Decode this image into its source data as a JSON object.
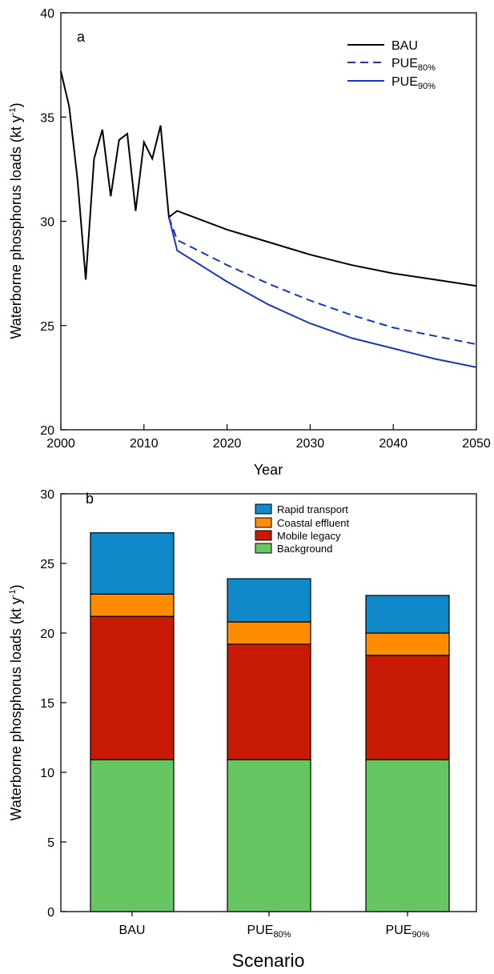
{
  "chart_data": [
    {
      "type": "line",
      "panel_label": "a",
      "xlabel": "Year",
      "ylabel": "Waterborne phosphorus loads (kt y",
      "ylabel_sup": "-1",
      "ylabel_end": ")",
      "xlim": [
        2000,
        2050
      ],
      "ylim": [
        20,
        40
      ],
      "xticks": [
        2000,
        2010,
        2020,
        2030,
        2040,
        2050
      ],
      "yticks": [
        20,
        25,
        30,
        35,
        40
      ],
      "grid": false,
      "legend_position": "top-right",
      "series": [
        {
          "name": "BAU",
          "name_base": "BAU",
          "name_sub": "",
          "color": "#000000",
          "dash": "solid",
          "x": [
            2000,
            2001,
            2002,
            2003,
            2004,
            2005,
            2006,
            2007,
            2008,
            2009,
            2010,
            2011,
            2012,
            2013,
            2014,
            2020,
            2025,
            2030,
            2035,
            2040,
            2045,
            2050
          ],
          "y": [
            37.2,
            35.5,
            32.0,
            27.2,
            33.0,
            34.4,
            31.2,
            33.9,
            34.2,
            30.5,
            33.8,
            33.0,
            34.6,
            30.2,
            30.5,
            29.6,
            29.0,
            28.4,
            27.9,
            27.5,
            27.2,
            26.9
          ]
        },
        {
          "name": "PUE80%",
          "name_base": "PUE",
          "name_sub": "80%",
          "color": "#1a37bf",
          "dash": "dashed",
          "x": [
            2013,
            2014,
            2020,
            2025,
            2030,
            2035,
            2040,
            2045,
            2050
          ],
          "y": [
            30.2,
            29.1,
            27.9,
            27.0,
            26.2,
            25.5,
            24.9,
            24.5,
            24.1
          ]
        },
        {
          "name": "PUE90%",
          "name_base": "PUE",
          "name_sub": "90%",
          "color": "#1a37bf",
          "dash": "solid",
          "x": [
            2013,
            2014,
            2020,
            2025,
            2030,
            2035,
            2040,
            2045,
            2050
          ],
          "y": [
            30.2,
            28.6,
            27.1,
            26.0,
            25.1,
            24.4,
            23.9,
            23.4,
            23.0
          ]
        }
      ]
    },
    {
      "type": "bar",
      "stacked": true,
      "panel_label": "b",
      "xlabel": "Scenario",
      "ylabel": "Waterborne phosphorus loads (kt y",
      "ylabel_sup": "-1",
      "ylabel_end": ")",
      "ylim": [
        0,
        30
      ],
      "yticks": [
        0,
        5,
        10,
        15,
        20,
        25,
        30
      ],
      "grid": false,
      "legend_position": "top-center",
      "categories": [
        {
          "label": "BAU",
          "base": "BAU",
          "sub": ""
        },
        {
          "label": "PUE80%",
          "base": "PUE",
          "sub": "80%"
        },
        {
          "label": "PUE90%",
          "base": "PUE",
          "sub": "90%"
        }
      ],
      "series": [
        {
          "name": "Background",
          "color": "#66c661",
          "values": [
            10.9,
            10.9,
            10.9
          ]
        },
        {
          "name": "Mobile legacy",
          "color": "#c81b06",
          "values": [
            10.3,
            8.3,
            7.5
          ]
        },
        {
          "name": "Coastal effluent",
          "color": "#ff8c00",
          "values": [
            1.6,
            1.6,
            1.6
          ]
        },
        {
          "name": "Rapid transport",
          "color": "#0f89c9",
          "values": [
            4.4,
            3.1,
            2.7
          ]
        }
      ]
    }
  ]
}
